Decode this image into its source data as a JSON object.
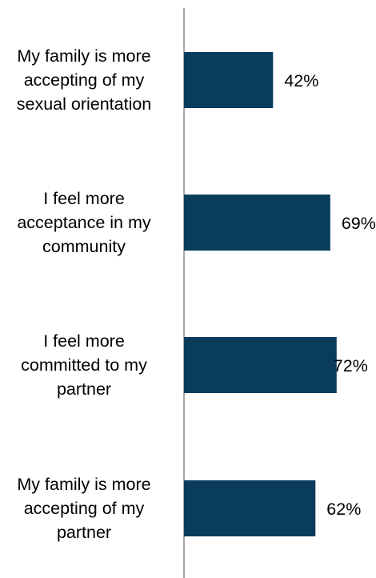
{
  "chart_data": {
    "type": "bar",
    "orientation": "horizontal",
    "categories": [
      [
        "My family is more",
        "accepting of my",
        "sexual orientation"
      ],
      [
        "I feel more",
        "acceptance in my",
        "community"
      ],
      [
        "I feel more",
        "committed to my",
        "partner"
      ],
      [
        "My family is more",
        "accepting of my",
        "partner"
      ]
    ],
    "values": [
      42,
      69,
      72,
      62
    ],
    "value_labels": [
      "42%",
      "69%",
      "72%",
      "62%"
    ],
    "unit": "%",
    "xlim": [
      0,
      100
    ],
    "title": "",
    "xlabel": "",
    "ylabel": "",
    "grid": false,
    "legend": "none",
    "colors": {
      "bar": "#0a3d5c",
      "axis": "#8c8c8c",
      "text": "#000000"
    }
  }
}
